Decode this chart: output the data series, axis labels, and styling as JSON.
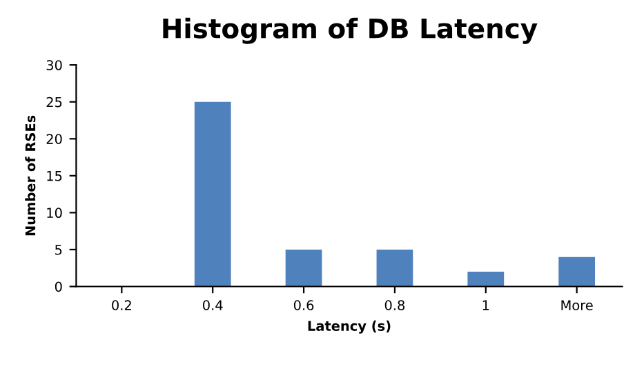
{
  "chart_data": {
    "type": "bar",
    "title": "Histogram of DB Latency",
    "xlabel": "Latency (s)",
    "ylabel": "Number of RSEs",
    "categories": [
      "0.2",
      "0.4",
      "0.6",
      "0.8",
      "1",
      "More"
    ],
    "values": [
      0,
      25,
      5,
      5,
      2,
      4
    ],
    "color": "#4f81bd",
    "ylim": [
      0,
      30
    ],
    "yticks": [
      0,
      5,
      10,
      15,
      20,
      25,
      30
    ],
    "grid": false
  }
}
